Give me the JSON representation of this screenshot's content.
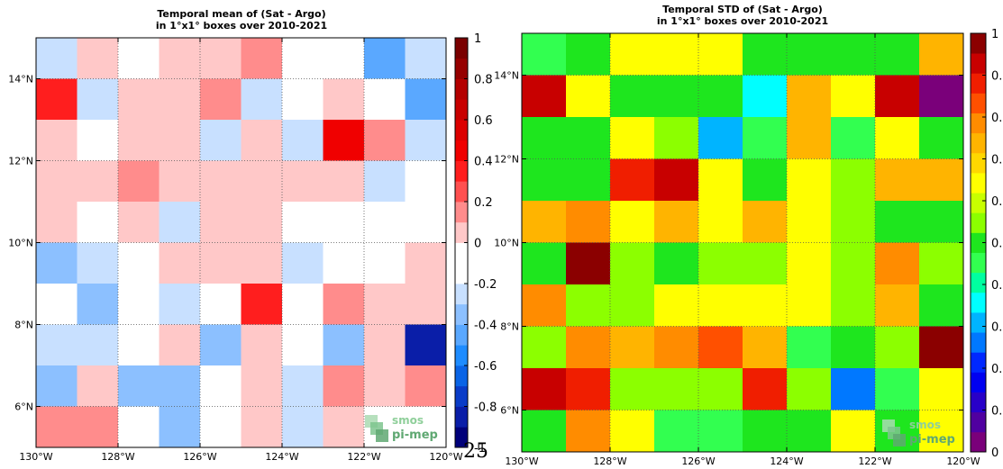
{
  "page_number": "25",
  "logo": {
    "line1": "smos",
    "line2": "pi-mep"
  },
  "chart_data": [
    {
      "type": "heatmap",
      "title": "Temporal mean of (Sat - Argo)",
      "subtitle": "in 1°x1° boxes over 2010-2021",
      "x_ticks": [
        "130°W",
        "128°W",
        "126°W",
        "124°W",
        "122°W",
        "120°W"
      ],
      "y_ticks": [
        "6°N",
        "8°N",
        "10°N",
        "12°N",
        "14°N"
      ],
      "colorbar_ticks": [
        "1",
        "0.8",
        "0.6",
        "0.4",
        "0.2",
        "0",
        "-0.2",
        "-0.4",
        "-0.6",
        "-0.8",
        "-1"
      ],
      "colorbar_range": [
        -1,
        1
      ],
      "colorbar_colors": [
        "#00007a",
        "#0a1ea8",
        "#0a3cc8",
        "#0a64e6",
        "#1e8cff",
        "#5aa8ff",
        "#8cc0ff",
        "#c8e0ff",
        "#ffffff",
        "#ffffff",
        "#ffc8c8",
        "#ff8c8c",
        "#ff5050",
        "#ff1e1e",
        "#f00000",
        "#dc0000",
        "#c80000",
        "#b40000",
        "#960000",
        "#7a0000"
      ],
      "lon_range": [
        -130,
        -120
      ],
      "lat_range": [
        5,
        15
      ],
      "rows_top_to_bottom": [
        [
          -0.3,
          0,
          -0.1,
          0,
          0,
          0.1,
          -0.1,
          -0.1,
          -0.5,
          -0.3
        ],
        [
          0.3,
          -0.3,
          0,
          0,
          0.1,
          -0.3,
          -0.1,
          0,
          -0.1,
          -0.5
        ],
        [
          0,
          -0.1,
          0,
          0,
          -0.3,
          0,
          -0.3,
          0.4,
          0.1,
          -0.3
        ],
        [
          0,
          0,
          0.1,
          0,
          0,
          0,
          0,
          0,
          -0.3,
          -0.1
        ],
        [
          0,
          -0.1,
          0,
          -0.3,
          0,
          0,
          -0.1,
          -0.1,
          -0.1,
          -0.1
        ],
        [
          -0.4,
          -0.3,
          -0.1,
          0,
          0,
          0,
          -0.3,
          -0.1,
          -0.1,
          0
        ],
        [
          -0.1,
          -0.4,
          -0.1,
          -0.3,
          -0.1,
          0.3,
          -0.1,
          0.1,
          0,
          0
        ],
        [
          -0.3,
          -0.3,
          -0.1,
          0,
          -0.4,
          0,
          -0.1,
          -0.4,
          0,
          -0.8
        ],
        [
          -0.4,
          0,
          -0.4,
          -0.4,
          -0.1,
          0,
          -0.3,
          0.1,
          0,
          0.1
        ],
        [
          0.1,
          0.1,
          -0.1,
          -0.4,
          -0.1,
          0,
          -0.3,
          0,
          -0.1,
          -0.1
        ]
      ]
    },
    {
      "type": "heatmap",
      "title": "Temporal STD of (Sat - Argo)",
      "subtitle": "in 1°x1° boxes over 2010-2021",
      "x_ticks": [
        "130°W",
        "128°W",
        "126°W",
        "124°W",
        "122°W",
        "120°W"
      ],
      "y_ticks": [
        "6°N",
        "8°N",
        "10°N",
        "12°N",
        "14°N"
      ],
      "colorbar_ticks": [
        "1",
        "0.",
        "0.",
        "0.",
        "0.",
        "0.",
        "0.",
        "0.",
        "0.",
        "0.",
        "0"
      ],
      "colorbar_range": [
        0,
        1
      ],
      "colorbar_colors": [
        "#7a007a",
        "#5000a0",
        "#2800c8",
        "#0000f0",
        "#0028ff",
        "#0078ff",
        "#00b4ff",
        "#00ffff",
        "#00ffa0",
        "#32ff50",
        "#1ee61e",
        "#8cff00",
        "#c8ff00",
        "#ffff00",
        "#ffd700",
        "#ffb400",
        "#ff8c00",
        "#ff5000",
        "#f01e00",
        "#c80000",
        "#8b0000"
      ],
      "lon_range": [
        -130,
        -120
      ],
      "lat_range": [
        5,
        15
      ],
      "rows_top_to_bottom": [
        [
          0.43,
          0.48,
          0.62,
          0.62,
          0.62,
          0.48,
          0.48,
          0.48,
          0.48,
          0.72
        ],
        [
          0.94,
          0.62,
          0.48,
          0.48,
          0.48,
          0.35,
          0.72,
          0.62,
          0.94,
          0.02
        ],
        [
          0.48,
          0.48,
          0.62,
          0.55,
          0.3,
          0.43,
          0.72,
          0.45,
          0.62,
          0.48
        ],
        [
          0.48,
          0.48,
          0.88,
          0.94,
          0.62,
          0.48,
          0.62,
          0.55,
          0.72,
          0.72
        ],
        [
          0.72,
          0.8,
          0.62,
          0.72,
          0.62,
          0.72,
          0.62,
          0.55,
          0.48,
          0.48
        ],
        [
          0.48,
          0.98,
          0.55,
          0.48,
          0.55,
          0.55,
          0.62,
          0.55,
          0.8,
          0.55
        ],
        [
          0.8,
          0.55,
          0.55,
          0.62,
          0.62,
          0.62,
          0.62,
          0.55,
          0.72,
          0.48
        ],
        [
          0.55,
          0.8,
          0.72,
          0.8,
          0.85,
          0.72,
          0.45,
          0.48,
          0.55,
          0.98
        ],
        [
          0.94,
          0.88,
          0.55,
          0.55,
          0.55,
          0.9,
          0.55,
          0.25,
          0.43,
          0.62
        ],
        [
          0.48,
          0.8,
          0.62,
          0.43,
          0.43,
          0.48,
          0.48,
          0.62,
          0.48,
          0.62
        ]
      ]
    }
  ]
}
